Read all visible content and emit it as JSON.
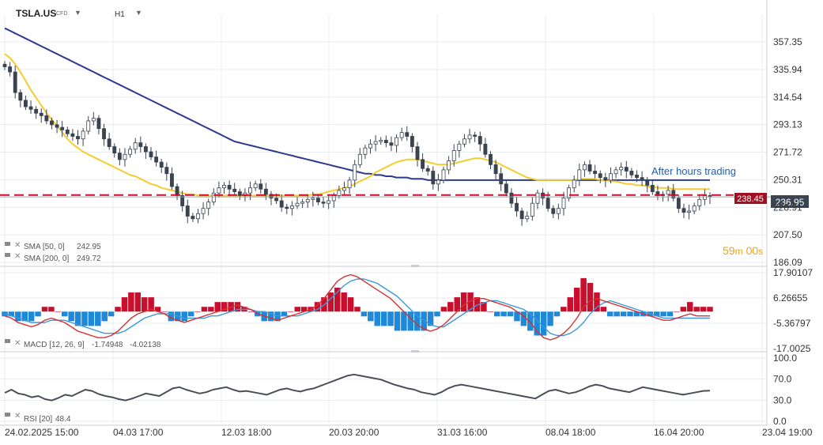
{
  "header": {
    "symbol": "TSLA.US",
    "instrument_type": "CFD",
    "timeframe": "H1",
    "dropdown_icon": "caret-down-icon"
  },
  "colors": {
    "bull_candle": "#ffffff",
    "bear_candle": "#3a4350",
    "sma50": "#f4cc2f",
    "sma200": "#2b3a8f",
    "price_line": "#c8102e",
    "macd_line": "#d83030",
    "signal_line": "#3a9ad9",
    "hist_positive": "#c8102e",
    "hist_negative": "#1e88d9",
    "rsi_line": "#4a4f56",
    "grid": "#e9ecef",
    "axis_text": "#333333",
    "countdown": "#f0a020",
    "annotation": "#2a5caa"
  },
  "annotations": {
    "after_hours": "After hours trading",
    "price_tag": "238.45",
    "last_price": "236.95",
    "countdown_min": "59",
    "countdown_min_unit": "m",
    "countdown_sec": "00",
    "countdown_sec_unit": "s"
  },
  "indicators": {
    "sma50": {
      "label": "SMA [50, 0]",
      "value": "242.95"
    },
    "sma200": {
      "label": "SMA [200, 0]",
      "value": "249.72"
    },
    "macd": {
      "label": "MACD [12, 26, 9]",
      "value1": "-1.74948",
      "value2": "-4.02138"
    },
    "rsi": {
      "label": "RSI [20]",
      "value": "48.4"
    }
  },
  "chart_data": [
    {
      "type": "candlestick",
      "title": "TSLA.US",
      "timeframe": "H1",
      "y_tick_labels": [
        "357.35",
        "335.94",
        "314.54",
        "293.13",
        "271.72",
        "250.31",
        "228.91",
        "207.50",
        "186.09"
      ],
      "ylim": [
        186.09,
        357.35
      ],
      "x_tick_labels": [
        "24.02.2025  15:00",
        "04.03  17:00",
        "12.03  18:00",
        "20.03  20:00",
        "31.03  16:00",
        "08.04  18:00",
        "16.04  20:00",
        "23.04  19:00"
      ],
      "current_price": 238.45,
      "last_price": 236.95,
      "close_series": [
        338,
        334,
        318,
        312,
        307,
        305,
        302,
        300,
        296,
        293,
        291,
        289,
        286,
        284,
        282,
        288,
        296,
        298,
        290,
        282,
        276,
        271,
        266,
        270,
        274,
        279,
        276,
        272,
        268,
        264,
        260,
        255,
        245,
        238,
        230,
        222,
        220,
        224,
        228,
        233,
        240,
        244,
        246,
        243,
        241,
        238,
        240,
        244,
        247,
        243,
        239,
        236,
        234,
        229,
        228,
        230,
        232,
        233,
        235,
        236,
        233,
        232,
        234,
        238,
        242,
        244,
        250,
        262,
        270,
        275,
        278,
        280,
        281,
        279,
        277,
        283,
        287,
        284,
        276,
        266,
        259,
        257,
        247,
        250,
        258,
        265,
        273,
        278,
        282,
        285,
        284,
        278,
        270,
        262,
        255,
        247,
        240,
        232,
        226,
        220,
        222,
        232,
        240,
        236,
        228,
        224,
        228,
        236,
        244,
        250,
        258,
        262,
        257,
        255,
        252,
        250,
        255,
        258,
        260,
        257,
        254,
        252,
        250,
        246,
        241,
        238,
        239,
        242,
        236,
        228,
        225,
        226,
        230,
        235,
        238,
        237
      ],
      "sma50_series": [
        348,
        345,
        340,
        334,
        327,
        320,
        314,
        308,
        302,
        297,
        292,
        287,
        282,
        278,
        275,
        272,
        270,
        268,
        266,
        264,
        262,
        260,
        258,
        256,
        254,
        253,
        251,
        249,
        247,
        246,
        244,
        243,
        242,
        241,
        240,
        239,
        239,
        238,
        238,
        238,
        238,
        238,
        238,
        238,
        238,
        238,
        238,
        238,
        238,
        238,
        238,
        238,
        238,
        238,
        238,
        238,
        238,
        238,
        238,
        239,
        239,
        240,
        241,
        242,
        243,
        244,
        245,
        247,
        249,
        251,
        253,
        256,
        258,
        260,
        262,
        264,
        265,
        266,
        266,
        266,
        265,
        264,
        263,
        262,
        262,
        262,
        263,
        264,
        265,
        266,
        267,
        267,
        266,
        265,
        264,
        262,
        260,
        258,
        256,
        254,
        252,
        251,
        250,
        250,
        250,
        250,
        250,
        250,
        250,
        250,
        251,
        251,
        251,
        251,
        250,
        250,
        249,
        249,
        248,
        247,
        247,
        246,
        246,
        245,
        245,
        244,
        244,
        244,
        243,
        243,
        243,
        243,
        243,
        243,
        243,
        243
      ],
      "sma200_series": [
        368,
        366,
        364,
        362,
        360,
        358,
        356,
        354,
        352,
        350,
        348,
        346,
        344,
        342,
        340,
        338,
        336,
        334,
        332,
        330,
        328,
        326,
        324,
        322,
        320,
        318,
        316,
        314,
        312,
        310,
        308,
        306,
        304,
        302,
        300,
        298,
        296,
        294,
        292,
        290,
        288,
        286,
        284,
        282,
        280,
        279,
        278,
        277,
        276,
        275,
        274,
        273,
        272,
        271,
        270,
        269,
        268,
        267,
        266,
        265,
        264,
        263,
        262,
        261,
        260,
        259,
        258,
        257,
        256,
        255,
        255,
        254,
        254,
        253,
        253,
        252,
        252,
        252,
        251,
        251,
        251,
        250,
        250,
        250,
        250,
        250,
        250,
        250,
        250,
        250,
        250,
        250,
        250,
        250,
        250,
        250,
        250,
        250,
        250,
        250,
        250,
        250,
        250,
        250,
        250,
        250,
        250,
        250,
        250,
        250,
        250,
        250,
        250,
        250,
        250,
        250,
        250,
        250,
        250,
        250,
        250,
        250,
        250,
        250,
        250,
        250,
        250,
        250,
        250,
        250,
        250,
        250,
        250,
        250,
        250,
        250
      ]
    },
    {
      "type": "macd",
      "title": "MACD [12, 26, 9]",
      "y_tick_labels": [
        "17.90107",
        "6.26655",
        "-5.36797",
        "-17.0025"
      ],
      "ylim": [
        -17.0025,
        17.90107
      ],
      "macd_series": [
        -2,
        -3,
        -5,
        -6,
        -7,
        -6,
        -4,
        -3,
        -4,
        -5,
        -7,
        -9,
        -10,
        -11,
        -12,
        -12,
        -11,
        -9,
        -6,
        -3,
        -1,
        0,
        1,
        0,
        -1,
        -3,
        -4,
        -5,
        -4,
        -3,
        -2,
        -1,
        0,
        1,
        2,
        3,
        2,
        1,
        -1,
        -2,
        -3,
        -4,
        -3,
        -2,
        -1,
        0,
        1,
        3,
        6,
        10,
        14,
        16,
        17,
        16,
        14,
        12,
        10,
        8,
        6,
        3,
        0,
        -3,
        -6,
        -8,
        -9,
        -8,
        -6,
        -3,
        0,
        3,
        5,
        6,
        6,
        5,
        4,
        3,
        2,
        0,
        -2,
        -5,
        -9,
        -12,
        -13,
        -12,
        -10,
        -7,
        -3,
        2,
        5,
        6,
        5,
        4,
        3,
        2,
        1,
        0,
        -1,
        -2,
        -3,
        -4,
        -4,
        -3,
        -2,
        -1,
        -2,
        -2,
        -2
      ],
      "signal_series": [
        -1,
        -2,
        -3,
        -4,
        -5,
        -5,
        -5,
        -4,
        -4,
        -4,
        -5,
        -6,
        -7,
        -8,
        -9,
        -10,
        -10,
        -10,
        -9,
        -7,
        -5,
        -3,
        -2,
        -1,
        -1,
        -1,
        -2,
        -3,
        -3,
        -3,
        -3,
        -2,
        -2,
        -1,
        0,
        1,
        1,
        1,
        0,
        0,
        -1,
        -2,
        -2,
        -2,
        -2,
        -1,
        0,
        1,
        3,
        6,
        9,
        12,
        14,
        15,
        15,
        14,
        13,
        11,
        9,
        7,
        4,
        1,
        -2,
        -4,
        -6,
        -7,
        -7,
        -5,
        -3,
        -1,
        1,
        3,
        4,
        5,
        5,
        4,
        3,
        2,
        1,
        -1,
        -4,
        -7,
        -10,
        -11,
        -11,
        -10,
        -8,
        -5,
        -1,
        2,
        4,
        5,
        4,
        3,
        2,
        1,
        0,
        -1,
        -2,
        -3,
        -3,
        -3,
        -3,
        -3,
        -3,
        -3,
        -3
      ]
    },
    {
      "type": "line",
      "title": "RSI [20]",
      "y_tick_labels": [
        "100.0",
        "70.0",
        "30.0",
        "0.0"
      ],
      "ylim": [
        0,
        100
      ],
      "rsi_series": [
        45,
        50,
        44,
        42,
        38,
        40,
        35,
        33,
        37,
        42,
        40,
        45,
        50,
        48,
        43,
        40,
        38,
        35,
        33,
        36,
        40,
        44,
        42,
        40,
        46,
        52,
        54,
        50,
        47,
        44,
        46,
        50,
        52,
        54,
        50,
        47,
        48,
        46,
        44,
        42,
        46,
        50,
        52,
        49,
        47,
        50,
        52,
        56,
        60,
        64,
        68,
        72,
        74,
        72,
        70,
        68,
        66,
        62,
        58,
        55,
        52,
        50,
        46,
        44,
        42,
        46,
        52,
        56,
        58,
        56,
        54,
        52,
        50,
        48,
        46,
        44,
        42,
        40,
        38,
        36,
        42,
        48,
        50,
        47,
        44,
        46,
        50,
        55,
        58,
        56,
        52,
        50,
        48,
        46,
        50,
        54,
        52,
        50,
        48,
        46,
        44,
        42,
        44,
        46,
        48,
        48.4
      ]
    }
  ]
}
